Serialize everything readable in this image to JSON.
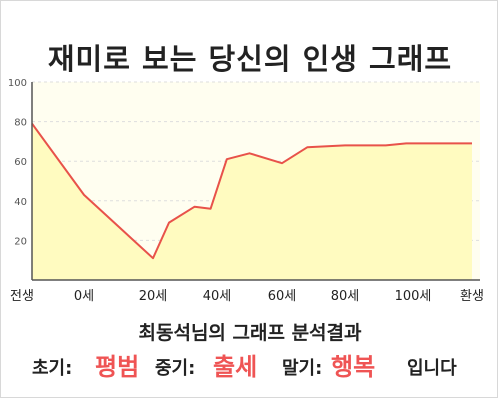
{
  "title": "재미로 보는 당신의 인생 그래프",
  "chart_data": {
    "type": "area",
    "x_labels": [
      "전생",
      "0세",
      "20세",
      "40세",
      "60세",
      "80세",
      "100세",
      "환생"
    ],
    "y_ticks": [
      20,
      40,
      60,
      80,
      100
    ],
    "ylim": [
      0,
      100
    ],
    "x": [
      -15,
      0,
      20,
      25,
      33,
      38,
      43,
      50,
      60,
      68,
      80,
      92,
      98,
      110
    ],
    "values": [
      79,
      43,
      11,
      29,
      37,
      36,
      61,
      64,
      59,
      67,
      68,
      68,
      69,
      69
    ],
    "grid": true,
    "colors": {
      "line": "#e8524a",
      "fill": "#fffbc0",
      "plot_bg": "#fffef0"
    }
  },
  "result_title": "최동석님의 그래프 분석결과",
  "summary": {
    "early_label": "초기:",
    "early_value": "평범",
    "mid_label": "중기:",
    "mid_value": "출세",
    "late_label": "말기:",
    "late_value": "행복",
    "suffix": "입니다"
  }
}
